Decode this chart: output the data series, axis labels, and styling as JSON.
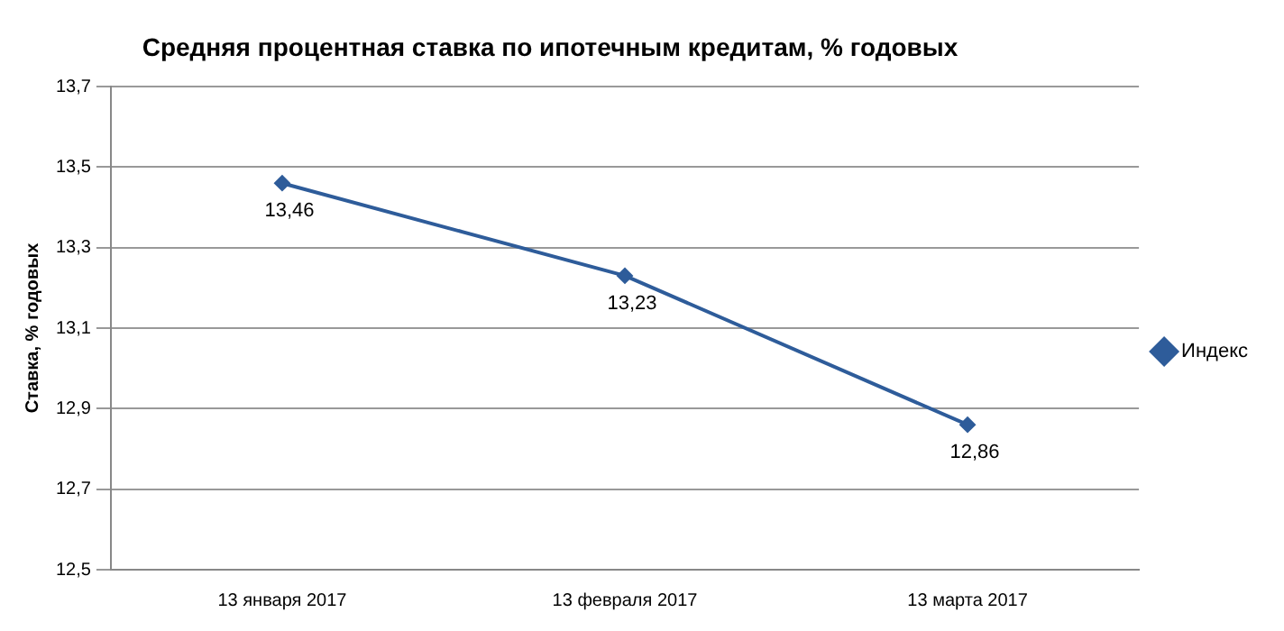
{
  "chart_data": {
    "type": "line",
    "title": "Средняя процентная  ставка по ипотечным кредитам, % годовых",
    "ylabel": "Ставка, % годовых",
    "categories": [
      "13 января 2017",
      "13 февраля 2017",
      "13 марта 2017"
    ],
    "series": [
      {
        "name": "Индекс",
        "color": "#2e5c9a",
        "values": [
          13.46,
          13.23,
          12.86
        ],
        "value_labels": [
          "13,46",
          "13,23",
          "12,86"
        ]
      }
    ],
    "ylim": [
      12.5,
      13.7
    ],
    "yticks": [
      {
        "value": 12.5,
        "label": "12,5"
      },
      {
        "value": 12.7,
        "label": "12,7"
      },
      {
        "value": 12.9,
        "label": "12,9"
      },
      {
        "value": 13.1,
        "label": "13,1"
      },
      {
        "value": 13.3,
        "label": "13,3"
      },
      {
        "value": 13.5,
        "label": "13,5"
      },
      {
        "value": 13.7,
        "label": "13,7"
      }
    ],
    "grid": "y",
    "legend": "right",
    "marker": "diamond",
    "line_style": "solid"
  }
}
